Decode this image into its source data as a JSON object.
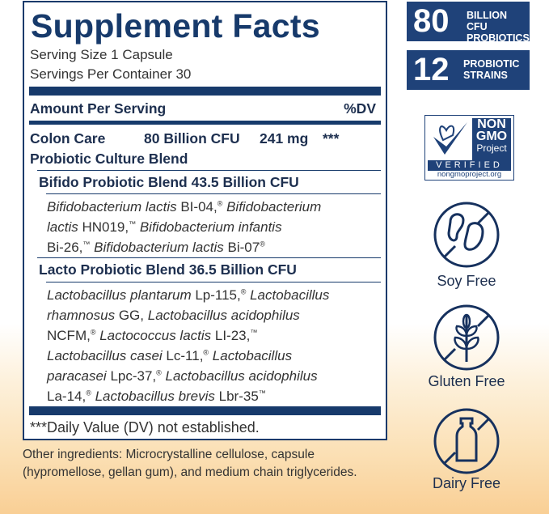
{
  "facts": {
    "title": "Supplement Facts",
    "serving_size": "Serving Size 1 Capsule",
    "servings_per_container": "Servings Per Container 30",
    "amount_header": "Amount Per Serving",
    "dv_header": "%DV",
    "blend": {
      "name_line1": "Colon Care",
      "name_line2": "Probiotic Culture Blend",
      "cfu": "80 Billion CFU",
      "weight": "241 mg",
      "dv": "***"
    },
    "bifido": {
      "header": "Bifido Probiotic Blend 43.5 Billion CFU",
      "lines": [
        [
          {
            "t": "Bifidobacterium lactis",
            "i": true
          },
          {
            "t": " BI-04,"
          },
          {
            "t": "®",
            "s": true
          },
          {
            "t": " Bifidobacterium",
            "i": true
          }
        ],
        [
          {
            "t": "lactis",
            "i": true
          },
          {
            "t": " HN019,"
          },
          {
            "t": "™",
            "s": true
          },
          {
            "t": " Bifidobacterium infantis",
            "i": true
          }
        ],
        [
          {
            "t": "Bi-26,"
          },
          {
            "t": "™",
            "s": true
          },
          {
            "t": " Bifidobacterium lactis",
            "i": true
          },
          {
            "t": " Bi-07"
          },
          {
            "t": "®",
            "s": true
          }
        ]
      ]
    },
    "lacto": {
      "header": "Lacto Probiotic Blend 36.5 Billion CFU",
      "lines": [
        [
          {
            "t": "Lactobacillus plantarum",
            "i": true
          },
          {
            "t": " Lp-115,"
          },
          {
            "t": "®",
            "s": true
          },
          {
            "t": " Lactobacillus",
            "i": true
          }
        ],
        [
          {
            "t": "rhamnosus",
            "i": true
          },
          {
            "t": " GG, "
          },
          {
            "t": "Lactobacillus acidophilus",
            "i": true
          }
        ],
        [
          {
            "t": "NCFM,"
          },
          {
            "t": "®",
            "s": true
          },
          {
            "t": " Lactococcus lactis",
            "i": true
          },
          {
            "t": " LI-23,"
          },
          {
            "t": "™",
            "s": true
          }
        ],
        [
          {
            "t": "Lactobacillus casei",
            "i": true
          },
          {
            "t": " Lc-11,"
          },
          {
            "t": "®",
            "s": true
          },
          {
            "t": " Lactobacillus",
            "i": true
          }
        ],
        [
          {
            "t": "paracasei",
            "i": true
          },
          {
            "t": " Lpc-37,"
          },
          {
            "t": "®",
            "s": true
          },
          {
            "t": " Lactobacillus acidophilus",
            "i": true
          }
        ],
        [
          {
            "t": "La-14,"
          },
          {
            "t": "®",
            "s": true
          },
          {
            "t": " Lactobacillus brevis",
            "i": true
          },
          {
            "t": " Lbr-35"
          },
          {
            "t": "™",
            "s": true
          }
        ]
      ]
    },
    "footnote": "***Daily Value (DV) not established."
  },
  "other_ingredients": {
    "line1": "Other ingredients: Microcrystalline cellulose, capsule",
    "line2": "(hypromellose, gellan gum), and medium chain triglycerides."
  },
  "badges": [
    {
      "number": "80",
      "line1": "BILLION CFU",
      "line2": "PROBIOTICS"
    },
    {
      "number": "12",
      "line1": "PROBIOTIC",
      "line2": "STRAINS"
    }
  ],
  "non_gmo": {
    "l1": "NON",
    "l2": "GMO",
    "l3": "Project",
    "l4": "VERIFIED",
    "url": "nongmoproject.org"
  },
  "free_icons": [
    {
      "icon": "soy-free-icon",
      "label": "Soy Free"
    },
    {
      "icon": "gluten-free-icon",
      "label": "Gluten Free"
    },
    {
      "icon": "dairy-free-icon",
      "label": "Dairy Free"
    }
  ],
  "colors": {
    "navy": "#173a6b",
    "badge": "#1f4279",
    "peach": "#f9cf95"
  }
}
